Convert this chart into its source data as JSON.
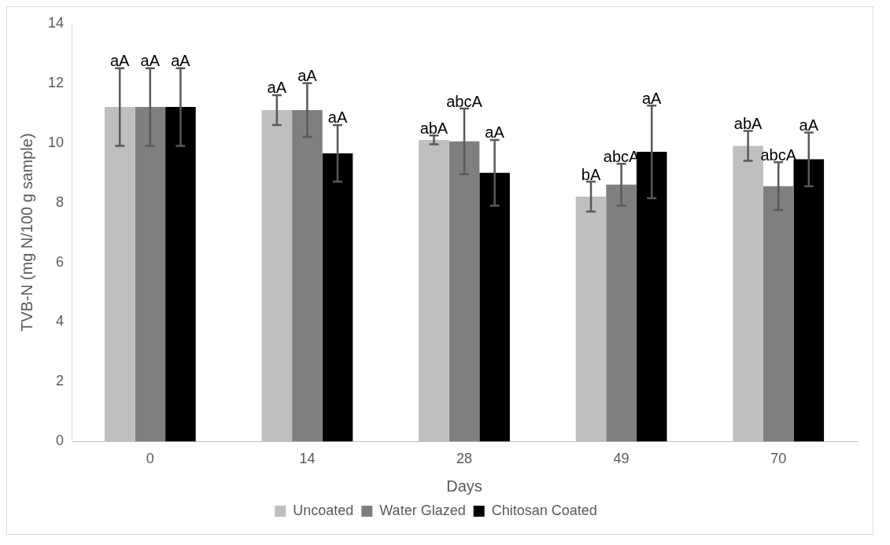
{
  "chart_data": {
    "type": "bar",
    "xlabel": "Days",
    "ylabel": "TVB-N (mg N/100 g sample)",
    "categories": [
      "0",
      "14",
      "28",
      "49",
      "70"
    ],
    "ylim": [
      0,
      14
    ],
    "yticks": [
      0,
      2,
      4,
      6,
      8,
      10,
      12,
      14
    ],
    "grid": false,
    "legend": "bottom",
    "series": [
      {
        "name": "Uncoated",
        "color": "#bfbfbf",
        "values": [
          11.2,
          11.1,
          10.1,
          8.2,
          9.9
        ],
        "errors": [
          1.3,
          0.5,
          0.15,
          0.5,
          0.5
        ],
        "value_labels": [
          "aA",
          "aA",
          "abA",
          "bA",
          "abA"
        ]
      },
      {
        "name": "Water Glazed",
        "color": "#7f7f7f",
        "values": [
          11.2,
          11.1,
          10.05,
          8.6,
          8.55
        ],
        "errors": [
          1.3,
          0.9,
          1.1,
          0.7,
          0.8
        ],
        "value_labels": [
          "aA",
          "aA",
          "abcA",
          "abcA",
          "abcA"
        ]
      },
      {
        "name": "Chitosan Coated",
        "color": "#000000",
        "values": [
          11.2,
          9.65,
          9.0,
          9.7,
          9.45
        ],
        "errors": [
          1.3,
          0.95,
          1.1,
          1.55,
          0.9
        ],
        "value_labels": [
          "aA",
          "aA",
          "aA",
          "aA",
          "aA"
        ]
      }
    ]
  }
}
